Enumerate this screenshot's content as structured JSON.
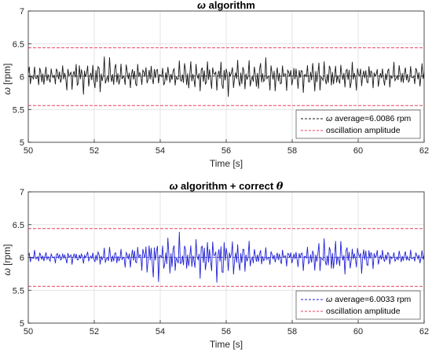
{
  "chart_data": [
    {
      "type": "line",
      "title_symbol": "ω",
      "title_text": " algorithm",
      "xlabel": "Time [s]",
      "ylabel_symbol": "ω",
      "ylabel_unit": " [rpm]",
      "xlim": [
        50,
        62
      ],
      "ylim": [
        5,
        7
      ],
      "xticks": [
        "50",
        "52",
        "54",
        "56",
        "58",
        "60",
        "62"
      ],
      "yticks": [
        "5",
        "5.5",
        "6",
        "6.5",
        "7"
      ],
      "grid": true,
      "legend_position": "bottom-right",
      "signal": {
        "mean": 6.0086,
        "color": "#1a1a1a",
        "seed": 7,
        "envelope": [
          0.18,
          0.22,
          0.3,
          0.25,
          0.2,
          0.32,
          0.3,
          0.28,
          0.22,
          0.3,
          0.25,
          0.2,
          0.22
        ]
      },
      "series": [
        {
          "legend_symbol": "ω",
          "legend_text": " average=6.0086 rpm",
          "y": 6.0086,
          "color": "#1a1a1a",
          "dash": true
        },
        {
          "legend_text": "oscillation amplitude",
          "y_upper": 6.44,
          "y_lower": 5.56,
          "color": "#e8405a",
          "dash": true
        }
      ]
    },
    {
      "type": "line",
      "title_symbol": "ω",
      "title_text": " algorithm + correct ",
      "title_symbol2": "θ",
      "xlabel": "Time [s]",
      "ylabel_symbol": "ω",
      "ylabel_unit": " [rpm]",
      "xlim": [
        50,
        62
      ],
      "ylim": [
        5,
        7
      ],
      "xticks": [
        "50",
        "52",
        "54",
        "56",
        "58",
        "60",
        "62"
      ],
      "yticks": [
        "5",
        "5.5",
        "6",
        "6.5",
        "7"
      ],
      "grid": true,
      "legend_position": "bottom-right",
      "signal": {
        "mean": 6.0033,
        "color": "#2323d6",
        "seed": 13,
        "envelope": [
          0.1,
          0.1,
          0.12,
          0.18,
          0.38,
          0.32,
          0.4,
          0.18,
          0.14,
          0.3,
          0.25,
          0.12,
          0.12
        ]
      },
      "series": [
        {
          "legend_symbol": "ω",
          "legend_text": " average=6.0033 rpm",
          "y": 6.0033,
          "color": "#2323d6",
          "dash": true
        },
        {
          "legend_text": "oscillation amplitude",
          "y_upper": 6.44,
          "y_lower": 5.56,
          "color": "#e8405a",
          "dash": true
        }
      ]
    }
  ]
}
